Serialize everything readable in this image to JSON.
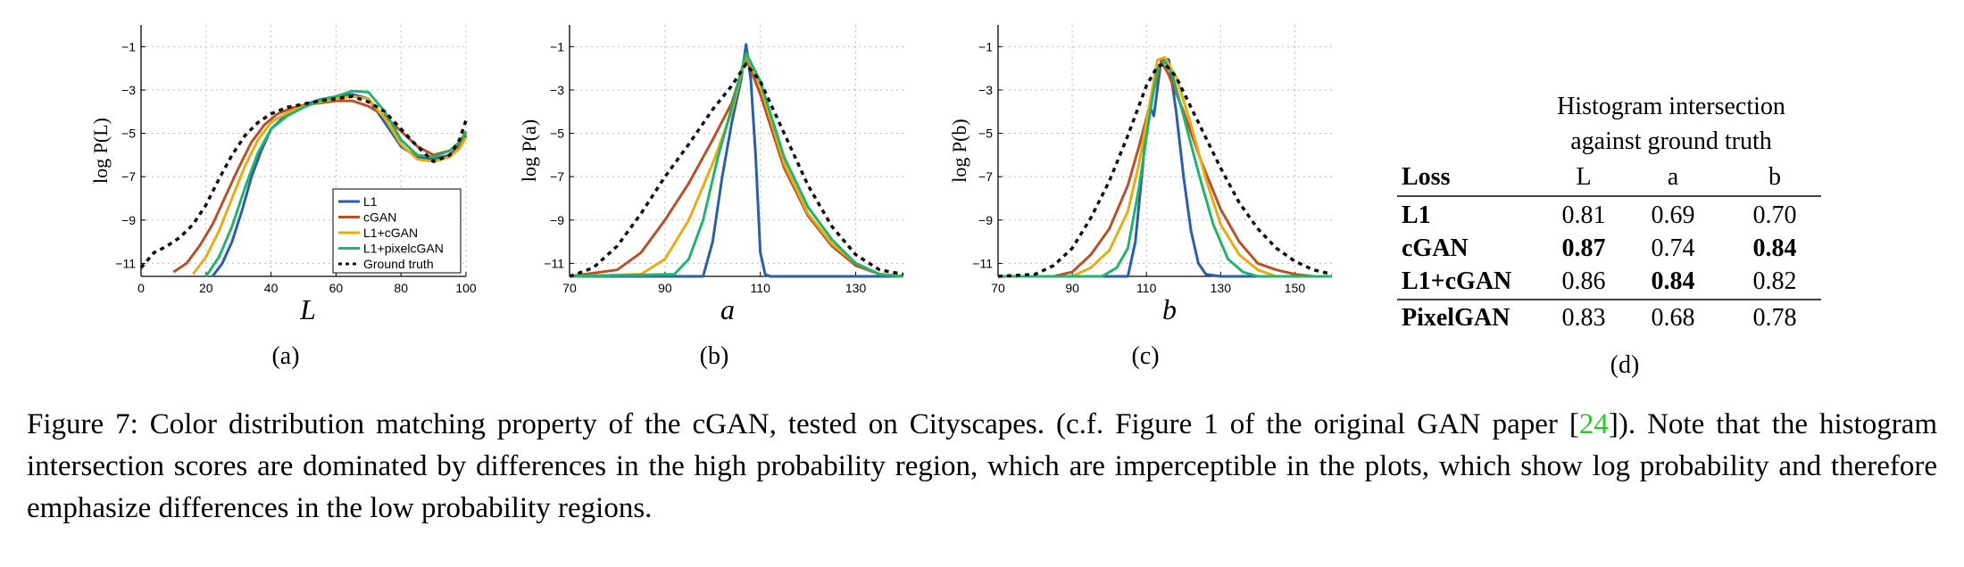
{
  "colors": {
    "L1": "#2b5ea8",
    "cGAN": "#b5522a",
    "L1+cGAN": "#e6ac16",
    "L1+pixelcGAN": "#24b36b",
    "Ground truth": "#111111",
    "ref_link": "#22cc22"
  },
  "chart_data": [
    {
      "panel": "(a)",
      "type": "line",
      "xlabel": "L",
      "ylabel": "log P(L)",
      "xlim": [
        0,
        100
      ],
      "ylim": [
        -11.6,
        0
      ],
      "xticks": [
        0,
        20,
        40,
        60,
        80,
        100
      ],
      "yticks": [
        -1,
        -3,
        -5,
        -7,
        -9,
        -11
      ],
      "grid": true,
      "legend_position": "bottom-right",
      "series": [
        {
          "name": "L1",
          "x": [
            22,
            25,
            28,
            31,
            34,
            37,
            40,
            45,
            50,
            55,
            60,
            65,
            70,
            75,
            80,
            85,
            90,
            95,
            98,
            100
          ],
          "y": [
            -11.6,
            -11,
            -10,
            -8.6,
            -7,
            -5.8,
            -4.8,
            -4.1,
            -3.7,
            -3.45,
            -3.3,
            -3.2,
            -3.4,
            -4.5,
            -5.6,
            -6.1,
            -6.2,
            -6,
            -5.6,
            -5.1
          ]
        },
        {
          "name": "cGAN",
          "x": [
            10,
            14,
            18,
            22,
            26,
            30,
            34,
            38,
            42,
            46,
            50,
            55,
            60,
            65,
            70,
            75,
            80,
            85,
            90,
            95,
            98,
            100
          ],
          "y": [
            -11.4,
            -11,
            -10.2,
            -9.2,
            -7.9,
            -6.6,
            -5.4,
            -4.6,
            -4.1,
            -3.85,
            -3.7,
            -3.6,
            -3.5,
            -3.5,
            -3.75,
            -4.2,
            -4.9,
            -5.6,
            -6,
            -5.8,
            -5.5,
            -5
          ]
        },
        {
          "name": "L1+cGAN",
          "x": [
            16,
            20,
            24,
            28,
            32,
            36,
            40,
            45,
            50,
            55,
            60,
            65,
            70,
            75,
            80,
            85,
            90,
            95,
            98,
            100
          ],
          "y": [
            -11.5,
            -10.7,
            -9.5,
            -8,
            -6.5,
            -5.3,
            -4.5,
            -4.05,
            -3.75,
            -3.55,
            -3.4,
            -3.3,
            -3.4,
            -4.3,
            -5.5,
            -6.2,
            -6.3,
            -6.1,
            -5.7,
            -5.2
          ]
        },
        {
          "name": "L1+pixelcGAN",
          "x": [
            20,
            24,
            28,
            32,
            36,
            40,
            45,
            50,
            55,
            60,
            65,
            70,
            75,
            80,
            85,
            90,
            95,
            98,
            100
          ],
          "y": [
            -11.6,
            -10.7,
            -9.3,
            -7.5,
            -5.9,
            -4.8,
            -4.2,
            -3.8,
            -3.5,
            -3.3,
            -3.05,
            -3.1,
            -4,
            -5.3,
            -6,
            -6.1,
            -5.8,
            -5.4,
            -4.9
          ]
        },
        {
          "name": "Ground truth",
          "x": [
            0,
            4,
            8,
            12,
            16,
            20,
            24,
            28,
            32,
            36,
            40,
            45,
            50,
            55,
            60,
            65,
            70,
            75,
            80,
            85,
            90,
            95,
            98,
            100
          ],
          "y": [
            -11.2,
            -10.5,
            -10.2,
            -9.8,
            -9.2,
            -8.3,
            -7.1,
            -6,
            -5.1,
            -4.5,
            -4.1,
            -3.8,
            -3.65,
            -3.5,
            -3.4,
            -3.3,
            -3.55,
            -4,
            -4.8,
            -5.6,
            -6.3,
            -6,
            -5.3,
            -4.4
          ]
        }
      ]
    },
    {
      "panel": "(b)",
      "type": "line",
      "xlabel": "a",
      "ylabel": "log P(a)",
      "xlim": [
        70,
        140
      ],
      "ylim": [
        -11.6,
        0
      ],
      "xticks": [
        70,
        90,
        110,
        130
      ],
      "yticks": [
        -1,
        -3,
        -5,
        -7,
        -9,
        -11
      ],
      "grid": true,
      "series": [
        {
          "name": "L1",
          "x": [
            70,
            98,
            100,
            102,
            104,
            106,
            107,
            108,
            109,
            110,
            111,
            112,
            140
          ],
          "y": [
            -11.6,
            -11.6,
            -10,
            -7,
            -4.5,
            -2.5,
            -0.9,
            -2.5,
            -6,
            -10.5,
            -11.5,
            -11.6,
            -11.6
          ]
        },
        {
          "name": "cGAN",
          "x": [
            70,
            80,
            85,
            90,
            95,
            100,
            104,
            107,
            110,
            115,
            120,
            125,
            130,
            135,
            140
          ],
          "y": [
            -11.6,
            -11.3,
            -10.5,
            -9,
            -7.3,
            -5.3,
            -3.6,
            -1.5,
            -3.2,
            -6.6,
            -8.8,
            -10.2,
            -11.1,
            -11.5,
            -11.6
          ]
        },
        {
          "name": "L1+cGAN",
          "x": [
            70,
            85,
            90,
            95,
            100,
            104,
            107,
            110,
            115,
            120,
            125,
            130,
            135,
            140
          ],
          "y": [
            -11.6,
            -11.5,
            -10.8,
            -9,
            -6.4,
            -4,
            -1.4,
            -2.8,
            -6.4,
            -8.7,
            -10.1,
            -11,
            -11.5,
            -11.6
          ]
        },
        {
          "name": "L1+pixelcGAN",
          "x": [
            70,
            92,
            95,
            98,
            101,
            104,
            107,
            110,
            115,
            120,
            125,
            130,
            135,
            140
          ],
          "y": [
            -11.6,
            -11.5,
            -10.8,
            -9,
            -6.2,
            -3.8,
            -1.3,
            -2.6,
            -6.1,
            -8.4,
            -9.9,
            -11,
            -11.5,
            -11.6
          ]
        },
        {
          "name": "Ground truth",
          "x": [
            70,
            75,
            80,
            85,
            90,
            95,
            100,
            104,
            107,
            110,
            115,
            120,
            125,
            130,
            135,
            140
          ],
          "y": [
            -11.6,
            -11.2,
            -10.2,
            -8.7,
            -7,
            -5.5,
            -3.9,
            -2.8,
            -1.8,
            -2.6,
            -5,
            -7.4,
            -9.3,
            -10.6,
            -11.3,
            -11.5
          ]
        }
      ]
    },
    {
      "panel": "(c)",
      "type": "line",
      "xlabel": "b",
      "ylabel": "log P(b)",
      "xlim": [
        70,
        160
      ],
      "ylim": [
        -11.6,
        0
      ],
      "xticks": [
        70,
        90,
        110,
        130,
        150
      ],
      "yticks": [
        -1,
        -3,
        -5,
        -7,
        -9,
        -11
      ],
      "grid": true,
      "series": [
        {
          "name": "L1",
          "x": [
            70,
            105,
            107,
            109,
            110,
            111,
            112,
            114,
            115,
            116,
            118,
            120,
            122,
            124,
            126,
            130,
            160
          ],
          "y": [
            -11.6,
            -11.6,
            -10,
            -6.5,
            -4.5,
            -3.8,
            -4.2,
            -1.6,
            -1.6,
            -1.6,
            -4,
            -7,
            -9.5,
            -11,
            -11.5,
            -11.6,
            -11.6
          ]
        },
        {
          "name": "cGAN",
          "x": [
            70,
            85,
            90,
            95,
            100,
            105,
            108,
            112,
            114,
            116,
            120,
            125,
            130,
            135,
            140,
            145,
            150,
            155,
            160
          ],
          "y": [
            -11.6,
            -11.6,
            -11.4,
            -10.6,
            -9.4,
            -7.4,
            -5.6,
            -3,
            -1.7,
            -2.3,
            -4,
            -6.4,
            -8.5,
            -10,
            -11,
            -11.3,
            -11.5,
            -11.6,
            -11.6
          ]
        },
        {
          "name": "L1+cGAN",
          "x": [
            70,
            90,
            95,
            100,
            105,
            108,
            111,
            113,
            115,
            118,
            122,
            126,
            130,
            135,
            140,
            145,
            150,
            160
          ],
          "y": [
            -11.6,
            -11.6,
            -11.2,
            -10.4,
            -8.6,
            -6.4,
            -3.5,
            -1.6,
            -1.5,
            -2.4,
            -4.6,
            -7.1,
            -9.2,
            -10.6,
            -11.3,
            -11.6,
            -11.6,
            -11.6
          ]
        },
        {
          "name": "L1+pixelcGAN",
          "x": [
            70,
            98,
            102,
            105,
            108,
            111,
            113,
            115,
            117,
            120,
            124,
            128,
            132,
            136,
            140,
            160
          ],
          "y": [
            -11.6,
            -11.6,
            -11.2,
            -10.3,
            -7.5,
            -4,
            -2,
            -1.7,
            -2.3,
            -4.2,
            -6.8,
            -9.2,
            -10.8,
            -11.4,
            -11.6,
            -11.6
          ]
        },
        {
          "name": "Ground truth",
          "x": [
            70,
            80,
            85,
            90,
            95,
            100,
            105,
            110,
            113,
            115,
            118,
            122,
            126,
            130,
            135,
            140,
            145,
            150,
            155,
            160
          ],
          "y": [
            -11.6,
            -11.5,
            -11.1,
            -10.3,
            -8.9,
            -7.2,
            -5.1,
            -2.8,
            -1.9,
            -1.8,
            -2.4,
            -3.8,
            -5.2,
            -6.6,
            -8.2,
            -9.4,
            -10.3,
            -10.9,
            -11.3,
            -11.5
          ]
        }
      ]
    },
    {
      "panel": "(d)",
      "type": "table",
      "header_group": [
        "Histogram intersection",
        "against ground truth"
      ],
      "columns": [
        "Loss",
        "L",
        "a",
        "b"
      ],
      "rows": [
        {
          "cells": [
            "L1",
            "0.81",
            "0.69",
            "0.70"
          ],
          "bold": [
            true,
            false,
            false,
            false
          ]
        },
        {
          "cells": [
            "cGAN",
            "0.87",
            "0.74",
            "0.84"
          ],
          "bold": [
            true,
            true,
            false,
            true
          ]
        },
        {
          "cells": [
            "L1+cGAN",
            "0.86",
            "0.84",
            "0.82"
          ],
          "bold": [
            true,
            false,
            true,
            false
          ]
        },
        {
          "cells": [
            "PixelGAN",
            "0.83",
            "0.68",
            "0.78"
          ],
          "bold": [
            true,
            false,
            false,
            false
          ]
        }
      ]
    }
  ],
  "panel_labels": {
    "a": "(a)",
    "b": "(b)",
    "c": "(c)",
    "d": "(d)"
  },
  "caption": {
    "before_ref": "Figure 7: Color distribution matching property of the cGAN, tested on Cityscapes. (c.f. Figure 1 of the original GAN paper [",
    "ref": "24",
    "after_ref": "]). Note that the histogram intersection scores are dominated by differences in the high probability region, which are imperceptible in the plots, which show log probability and therefore emphasize differences in the low probability regions."
  }
}
